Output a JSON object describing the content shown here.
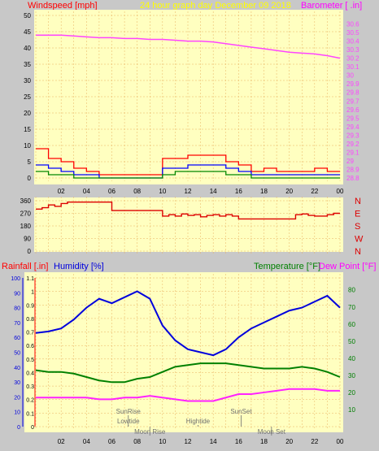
{
  "header": {
    "left": "Windspeed [mph]",
    "center": "24 hour graph day   December 09 2018",
    "right": "Barometer [ .in]"
  },
  "colors": {
    "panel": "#ffffc0",
    "frame": "#c8c8c8",
    "grid": "#e8b060",
    "barometer": "#ff44ff",
    "gust": "#ff0000",
    "wind": "#0000ff",
    "wind_low": "#008800",
    "direction": "#dd0000",
    "humidity": "#0000dd",
    "temperature": "#008000",
    "dewpoint": "#ff22ff",
    "header_left": "#ff0000",
    "header_center": "#ffff00",
    "header_right": "#ff00ff",
    "axis_text": "#000000",
    "label_text": "#707070"
  },
  "x_ticks": [
    "02",
    "04",
    "06",
    "08",
    "10",
    "12",
    "14",
    "16",
    "18",
    "20",
    "22",
    "00"
  ],
  "chart_data": [
    {
      "type": "line",
      "panel": "wind-barometer",
      "ylabel": "Windspeed [mph]",
      "y2label": "Barometer [ .in]",
      "ylim": [
        0,
        50
      ],
      "y_ticks": [
        0,
        5,
        10,
        15,
        20,
        25,
        30,
        35,
        40,
        45,
        50
      ],
      "y2lim": [
        28.8,
        30.7
      ],
      "y2_ticks": [
        28.8,
        28.9,
        29,
        29.1,
        29.2,
        29.3,
        29.4,
        29.5,
        29.6,
        29.7,
        29.8,
        29.9,
        30,
        30.1,
        30.2,
        30.3,
        30.4,
        30.5,
        30.6
      ],
      "series": [
        {
          "name": "Barometer",
          "axis": "right",
          "color": "#ff44ff",
          "x": [
            0,
            1,
            2,
            3,
            4,
            5,
            6,
            7,
            8,
            9,
            10,
            11,
            12,
            13,
            14,
            15,
            16,
            17,
            18,
            19,
            20,
            21,
            22,
            23,
            24
          ],
          "values": [
            30.47,
            30.47,
            30.47,
            30.46,
            30.45,
            30.44,
            30.44,
            30.43,
            30.43,
            30.42,
            30.42,
            30.41,
            30.4,
            30.4,
            30.39,
            30.37,
            30.35,
            30.33,
            30.31,
            30.29,
            30.27,
            30.26,
            30.25,
            30.23,
            30.2
          ]
        },
        {
          "name": "Gust",
          "axis": "left",
          "color": "#ff0000",
          "x": [
            0,
            1,
            2,
            3,
            4,
            5,
            6,
            7,
            8,
            9,
            10,
            11,
            12,
            13,
            14,
            15,
            16,
            17,
            18,
            19,
            20,
            21,
            22,
            23,
            24
          ],
          "values": [
            9,
            6,
            5,
            3,
            2,
            1,
            1,
            1,
            1,
            1,
            6,
            6,
            7,
            7,
            7,
            5,
            4,
            2,
            3,
            2,
            2,
            2,
            3,
            2,
            2
          ]
        },
        {
          "name": "Wind",
          "axis": "left",
          "color": "#0000ff",
          "x": [
            0,
            1,
            2,
            3,
            4,
            5,
            6,
            7,
            8,
            9,
            10,
            11,
            12,
            13,
            14,
            15,
            16,
            17,
            18,
            19,
            20,
            21,
            22,
            23,
            24
          ],
          "values": [
            4,
            3,
            2,
            1,
            1,
            0,
            0,
            0,
            0,
            0,
            3,
            3,
            4,
            4,
            4,
            3,
            2,
            1,
            1,
            1,
            1,
            1,
            1,
            1,
            1
          ]
        },
        {
          "name": "Wind Low",
          "axis": "left",
          "color": "#008800",
          "x": [
            0,
            1,
            2,
            3,
            4,
            5,
            6,
            7,
            8,
            9,
            10,
            11,
            12,
            13,
            14,
            15,
            16,
            17,
            18,
            19,
            20,
            21,
            22,
            23,
            24
          ],
          "values": [
            2,
            1,
            1,
            0,
            0,
            0,
            0,
            0,
            0,
            0,
            1,
            2,
            2,
            2,
            2,
            1,
            1,
            0,
            0,
            0,
            0,
            0,
            0,
            0,
            0
          ]
        }
      ]
    },
    {
      "type": "line",
      "panel": "wind-direction",
      "ylim": [
        0,
        360
      ],
      "y_ticks": [
        0,
        90,
        180,
        270,
        360
      ],
      "right_labels": [
        "N",
        "W",
        "S",
        "E",
        "N"
      ],
      "series": [
        {
          "name": "Direction",
          "color": "#dd0000",
          "x": [
            0,
            0.5,
            1,
            1.5,
            2,
            2.5,
            3,
            3.5,
            4,
            4.5,
            5,
            5.5,
            6,
            6.5,
            7,
            7.5,
            8,
            8.5,
            9,
            9.5,
            10,
            10.5,
            11,
            11.5,
            12,
            12.5,
            13,
            13.5,
            14,
            14.5,
            15,
            15.5,
            16,
            16.5,
            17,
            17.5,
            18,
            18.5,
            19,
            19.5,
            20,
            20.5,
            21,
            21.5,
            22,
            22.5,
            23,
            23.5,
            24
          ],
          "values": [
            300,
            310,
            330,
            320,
            340,
            350,
            350,
            350,
            350,
            350,
            350,
            350,
            290,
            290,
            290,
            290,
            290,
            290,
            290,
            290,
            250,
            260,
            250,
            265,
            255,
            260,
            245,
            255,
            260,
            250,
            260,
            250,
            230,
            230,
            230,
            230,
            230,
            230,
            230,
            230,
            230,
            260,
            265,
            255,
            250,
            250,
            260,
            270,
            270
          ]
        }
      ]
    },
    {
      "type": "line",
      "panel": "temp-humidity",
      "ylabel": "Rainfall [.in]",
      "ylabel2": "Humidity [%]",
      "y2label": "Temperature [°F]",
      "y2label2": "Dew Point [°F]",
      "rain_ticks": [
        0,
        0.1,
        0.2,
        0.3,
        0.4,
        0.5,
        0.6,
        0.7,
        0.8,
        0.9,
        1,
        1.1
      ],
      "humidity_ticks": [
        0,
        10,
        20,
        30,
        40,
        50,
        60,
        70,
        80,
        90,
        100
      ],
      "temp_ticks": [
        10,
        20,
        30,
        40,
        50,
        60,
        70,
        80
      ],
      "templim": [
        0,
        87
      ],
      "series": [
        {
          "name": "Humidity",
          "color": "#0000dd",
          "axis": "humidity",
          "x": [
            0,
            1,
            2,
            3,
            4,
            5,
            6,
            7,
            8,
            9,
            10,
            11,
            12,
            13,
            14,
            15,
            16,
            17,
            18,
            19,
            20,
            21,
            22,
            23,
            24
          ],
          "values": [
            63,
            64,
            66,
            72,
            80,
            86,
            83,
            87,
            91,
            86,
            68,
            58,
            52,
            50,
            48,
            52,
            60,
            66,
            70,
            74,
            78,
            80,
            84,
            88,
            80
          ]
        },
        {
          "name": "Temperature",
          "color": "#008000",
          "axis": "temp",
          "x": [
            0,
            1,
            2,
            3,
            4,
            5,
            6,
            7,
            8,
            9,
            10,
            11,
            12,
            13,
            14,
            15,
            16,
            17,
            18,
            19,
            20,
            21,
            22,
            23,
            24
          ],
          "values": [
            33,
            32,
            32,
            31,
            29,
            27,
            26,
            26,
            28,
            29,
            32,
            35,
            36,
            37,
            37,
            37,
            36,
            35,
            34,
            34,
            34,
            35,
            34,
            32,
            29
          ]
        },
        {
          "name": "Dew Point",
          "color": "#ff22ff",
          "axis": "temp",
          "x": [
            0,
            1,
            2,
            3,
            4,
            5,
            6,
            7,
            8,
            9,
            10,
            11,
            12,
            13,
            14,
            15,
            16,
            17,
            18,
            19,
            20,
            21,
            22,
            23,
            24
          ],
          "values": [
            17,
            17,
            17,
            17,
            17,
            16,
            16,
            17,
            17,
            18,
            17,
            16,
            15,
            15,
            15,
            17,
            19,
            19,
            20,
            21,
            22,
            22,
            22,
            21,
            21
          ]
        }
      ],
      "events": [
        {
          "label": "SunRise",
          "x": 7.3,
          "row": 0
        },
        {
          "label": "Lowtide",
          "x": 7.3,
          "row": 1
        },
        {
          "label": "Moon Rise",
          "x": 9.0,
          "row": 2
        },
        {
          "label": "Hightide",
          "x": 12.8,
          "row": 1
        },
        {
          "label": "SunSet",
          "x": 16.2,
          "row": 0
        },
        {
          "label": "Moon Set",
          "x": 18.6,
          "row": 2
        }
      ]
    }
  ]
}
